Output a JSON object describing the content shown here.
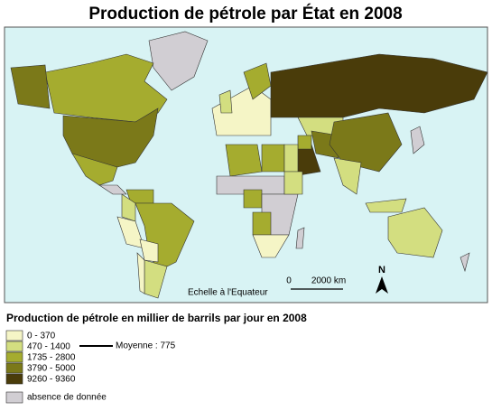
{
  "title": "Production de pétrole par État en 2008",
  "map": {
    "ocean_color": "#d8f3f4",
    "scale": {
      "label": "Echelle à l'Equateur",
      "start": "0",
      "end": "2000 km"
    },
    "north": "N"
  },
  "legend": {
    "title": "Production de pétrole en millier de barrils par jour en 2008",
    "classes": [
      {
        "label": "0 - 370",
        "color": "#f5f5c6"
      },
      {
        "label": "470 - 1400",
        "color": "#d3de80"
      },
      {
        "label": "1735 - 2800",
        "color": "#a5ac2f"
      },
      {
        "label": "3790 - 5000",
        "color": "#7b7919"
      },
      {
        "label": "9260 - 9360",
        "color": "#4a3c0a"
      }
    ],
    "average": "Moyenne : 775",
    "no_data": {
      "label": "absence de donnée",
      "color": "#d1ced3"
    }
  }
}
